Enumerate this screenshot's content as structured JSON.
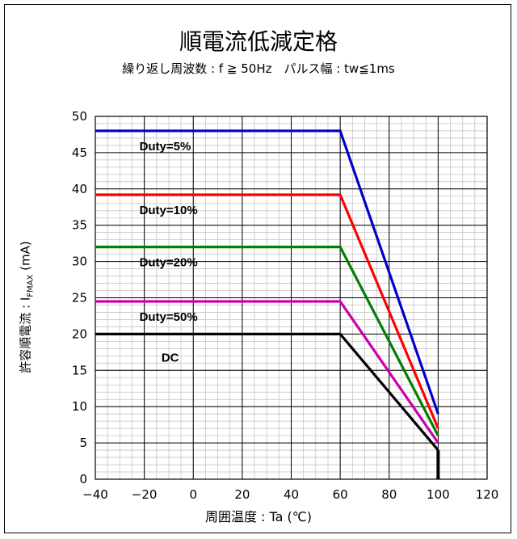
{
  "chart_data": {
    "type": "line",
    "title": "順電流低減定格",
    "subtitle": "繰り返し周波数 : f ≧ 50Hz　パルス幅 : tw≦1ms",
    "xlabel": "周囲温度 : Ta (℃)",
    "ylabel_main": "許容順電流 : I",
    "ylabel_sub": "FMAX",
    "ylabel_unit": " (mA)",
    "xlim": [
      -40,
      120
    ],
    "ylim": [
      0,
      50
    ],
    "x_ticks": [
      -40,
      -20,
      0,
      20,
      40,
      60,
      80,
      100,
      120
    ],
    "x_tick_labels": [
      "−40",
      "−20",
      "0",
      "20",
      "40",
      "60",
      "80",
      "100",
      "120"
    ],
    "y_ticks": [
      0,
      5,
      10,
      15,
      20,
      25,
      30,
      35,
      40,
      45,
      50
    ],
    "y_tick_labels": [
      "0",
      "5",
      "10",
      "15",
      "20",
      "25",
      "30",
      "35",
      "40",
      "45",
      "50"
    ],
    "grid": true,
    "series": [
      {
        "name": "Duty=5%",
        "color": "#0000cc",
        "x": [
          -40,
          60,
          100
        ],
        "y": [
          48,
          48,
          9
        ]
      },
      {
        "name": "Duty=10%",
        "color": "#ff0000",
        "x": [
          -40,
          60,
          100
        ],
        "y": [
          39.2,
          39.2,
          7
        ]
      },
      {
        "name": "Duty=20%",
        "color": "#008000",
        "x": [
          -40,
          60,
          100
        ],
        "y": [
          32,
          32,
          6
        ]
      },
      {
        "name": "Duty=50%",
        "color": "#cc00aa",
        "x": [
          -40,
          60,
          100
        ],
        "y": [
          24.5,
          24.5,
          5
        ]
      },
      {
        "name": "DC",
        "color": "#000000",
        "x": [
          -40,
          60,
          100
        ],
        "y": [
          20,
          20,
          4
        ]
      }
    ],
    "drop_line": {
      "color": "#000000",
      "x": [
        100,
        100
      ],
      "y": [
        4,
        0
      ]
    }
  }
}
